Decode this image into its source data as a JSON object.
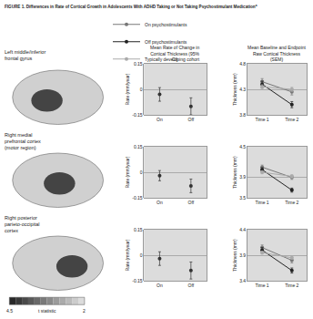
{
  "title": "FIGURE 1. Differences in Rate of Cortical Growth in Adolescents With ADHD Taking or Not Taking Psychostimulant Medication",
  "title_footnote": "a",
  "column_titles": [
    "Mean Rate of Change in Cortical Thickness (95% CI)",
    "Mean Baseline and Endpoint Raw Cortical Thickness (SEM)"
  ],
  "brain_colorbar": {
    "title": "t statistic",
    "range": [
      4.5,
      2
    ],
    "ticks": [
      4.5,
      2
    ]
  },
  "chart_data": [
    {
      "type": "scatter",
      "region": "Left middle/inferior frontal gyrus",
      "y_title": "Rate (mm/year)",
      "categories": [
        "On",
        "Off"
      ],
      "values": [
        -0.03,
        -0.1
      ],
      "errors": [
        0.04,
        0.05
      ],
      "color": "#333333",
      "marker": "circle",
      "ylim": [
        -0.15,
        0.15
      ],
      "yticks": [
        -0.15,
        0,
        0.15
      ],
      "grid": true
    },
    {
      "type": "scatter",
      "y_title": "Thickness (mm)",
      "categories": [
        "Time 1",
        "Time 2"
      ],
      "legend": "top",
      "series": [
        {
          "name": "On psychostimulants",
          "color": "#777777",
          "marker": "circle",
          "line_style": "solid",
          "values": [
            4.45,
            4.25
          ],
          "errors": [
            0.06,
            0.06
          ]
        },
        {
          "name": "Off psychostimulants",
          "color": "#222222",
          "marker": "circle",
          "line_style": "solid",
          "values": [
            4.4,
            4.0
          ],
          "errors": [
            0.06,
            0.06
          ]
        },
        {
          "name": "Typically developing cohort",
          "color": "#aaaaaa",
          "marker": "circle",
          "line_style": "solid",
          "values": [
            4.35,
            4.3
          ],
          "errors": [
            0.04,
            0.04
          ]
        }
      ],
      "ylim": [
        3.8,
        4.8
      ],
      "yticks": [
        3.8,
        4.3,
        4.8
      ],
      "grid": true
    },
    {
      "type": "scatter",
      "region": "Right medial prefrontal cortex (motor region)",
      "y_title": "Rate (mm/year)",
      "categories": [
        "On",
        "Off"
      ],
      "values": [
        -0.02,
        -0.08
      ],
      "errors": [
        0.03,
        0.04
      ],
      "color": "#333333",
      "marker": "circle",
      "ylim": [
        -0.15,
        0.15
      ],
      "yticks": [
        -0.15,
        0,
        0.15
      ],
      "grid": true
    },
    {
      "type": "scatter",
      "y_title": "Thickness (mm)",
      "categories": [
        "Time 1",
        "Time 2"
      ],
      "series": [
        {
          "name": "On psychostimulants",
          "color": "#777777",
          "marker": "circle",
          "line_style": "solid",
          "values": [
            4.1,
            3.9
          ],
          "errors": [
            0.04,
            0.04
          ]
        },
        {
          "name": "Off psychostimulants",
          "color": "#222222",
          "marker": "circle",
          "line_style": "solid",
          "values": [
            4.05,
            3.65
          ],
          "errors": [
            0.04,
            0.04
          ]
        },
        {
          "name": "Typically developing cohort",
          "color": "#aaaaaa",
          "marker": "circle",
          "line_style": "solid",
          "values": [
            4.0,
            3.92
          ],
          "errors": [
            0.03,
            0.03
          ]
        }
      ],
      "ylim": [
        3.5,
        4.5
      ],
      "yticks": [
        3.5,
        3.9,
        4.5
      ],
      "grid": true
    },
    {
      "type": "scatter",
      "region": "Right posterior parieto-occipital cortex",
      "y_title": "Rate (mm/year)",
      "categories": [
        "On",
        "Off"
      ],
      "values": [
        -0.02,
        -0.09
      ],
      "errors": [
        0.04,
        0.05
      ],
      "color": "#333333",
      "marker": "circle",
      "ylim": [
        -0.15,
        0.15
      ],
      "yticks": [
        -0.15,
        0,
        0.15
      ],
      "grid": true
    },
    {
      "type": "scatter",
      "y_title": "Thickness (mm)",
      "categories": [
        "Time 1",
        "Time 2"
      ],
      "series": [
        {
          "name": "On psychostimulants",
          "color": "#777777",
          "marker": "circle",
          "line_style": "solid",
          "values": [
            4.05,
            3.8
          ],
          "errors": [
            0.05,
            0.05
          ]
        },
        {
          "name": "Off psychostimulants",
          "color": "#222222",
          "marker": "circle",
          "line_style": "solid",
          "values": [
            4.0,
            3.6
          ],
          "errors": [
            0.05,
            0.05
          ]
        },
        {
          "name": "Typically developing cohort",
          "color": "#aaaaaa",
          "marker": "circle",
          "line_style": "solid",
          "values": [
            3.95,
            3.85
          ],
          "errors": [
            0.03,
            0.03
          ]
        }
      ],
      "ylim": [
        3.4,
        4.4
      ],
      "yticks": [
        3.4,
        3.9,
        4.4
      ],
      "grid": true
    }
  ]
}
